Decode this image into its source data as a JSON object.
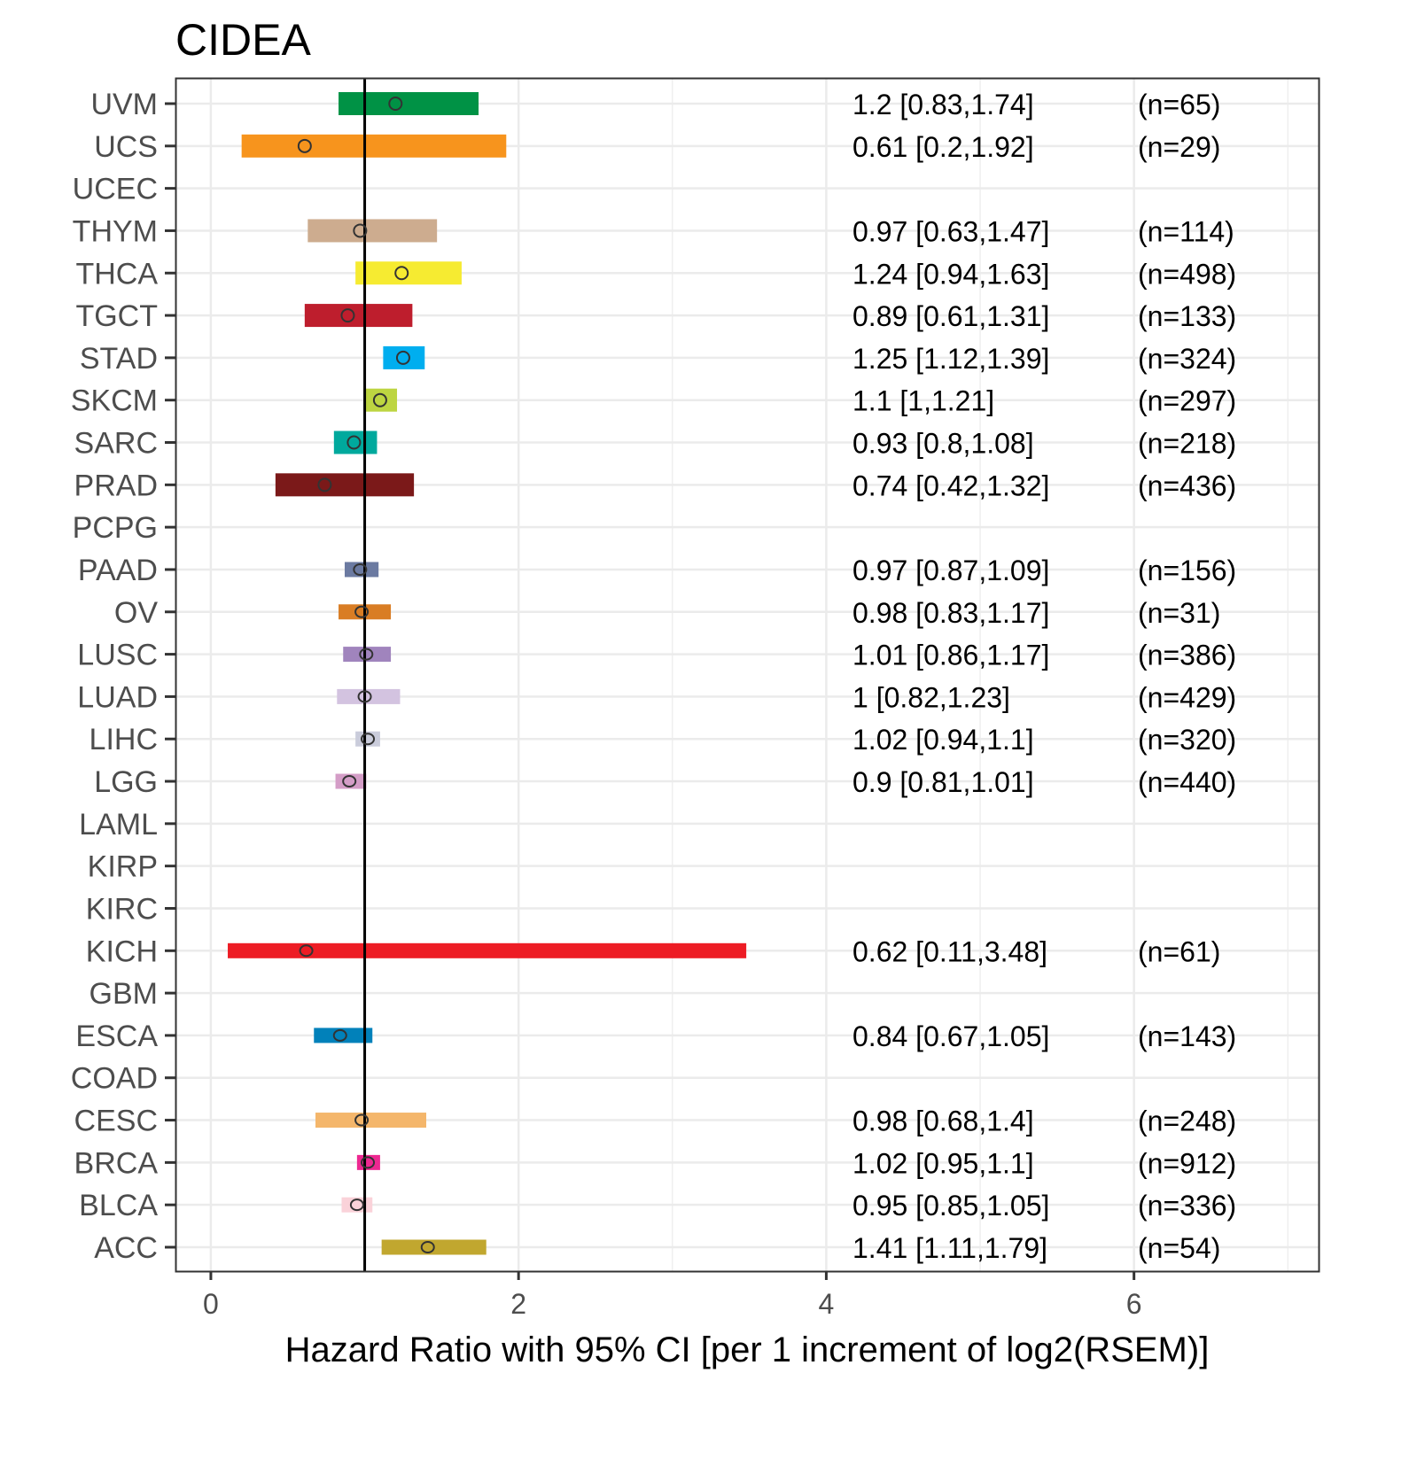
{
  "chart_data": {
    "type": "forest",
    "title": "CIDEA",
    "xlabel": "Hazard Ratio with 95% CI [per 1 increment of log2(RSEM)]",
    "xlim": [
      -0.23,
      7.2
    ],
    "xticks": [
      0,
      2,
      4,
      6
    ],
    "reference_line": 1,
    "grid": true,
    "rows": [
      {
        "label": "UVM",
        "hr": 1.2,
        "lo": 0.83,
        "hi": 1.74,
        "text": "1.2 [0.83,1.74]",
        "n": "(n=65)",
        "color": "#009245"
      },
      {
        "label": "UCS",
        "hr": 0.61,
        "lo": 0.2,
        "hi": 1.92,
        "text": "0.61 [0.2,1.92]",
        "n": "(n=29)",
        "color": "#F7941D"
      },
      {
        "label": "UCEC",
        "hr": null,
        "lo": null,
        "hi": null,
        "text": "",
        "n": "",
        "color": "#ffffff"
      },
      {
        "label": "THYM",
        "hr": 0.97,
        "lo": 0.63,
        "hi": 1.47,
        "text": "0.97 [0.63,1.47]",
        "n": "(n=114)",
        "color": "#CDAC8F"
      },
      {
        "label": "THCA",
        "hr": 1.24,
        "lo": 0.94,
        "hi": 1.63,
        "text": "1.24 [0.94,1.63]",
        "n": "(n=498)",
        "color": "#F6EB31"
      },
      {
        "label": "TGCT",
        "hr": 0.89,
        "lo": 0.61,
        "hi": 1.31,
        "text": "0.89 [0.61,1.31]",
        "n": "(n=133)",
        "color": "#BE1E2D"
      },
      {
        "label": "STAD",
        "hr": 1.25,
        "lo": 1.12,
        "hi": 1.39,
        "text": "1.25 [1.12,1.39]",
        "n": "(n=324)",
        "color": "#00AEEF"
      },
      {
        "label": "SKCM",
        "hr": 1.1,
        "lo": 1,
        "hi": 1.21,
        "text": "1.1 [1,1.21]",
        "n": "(n=297)",
        "color": "#BDD541"
      },
      {
        "label": "SARC",
        "hr": 0.93,
        "lo": 0.8,
        "hi": 1.08,
        "text": "0.93 [0.8,1.08]",
        "n": "(n=218)",
        "color": "#00A99D"
      },
      {
        "label": "PRAD",
        "hr": 0.74,
        "lo": 0.42,
        "hi": 1.32,
        "text": "0.74 [0.42,1.32]",
        "n": "(n=436)",
        "color": "#7B1919"
      },
      {
        "label": "PCPG",
        "hr": null,
        "lo": null,
        "hi": null,
        "text": "",
        "n": "",
        "color": "#ffffff"
      },
      {
        "label": "PAAD",
        "hr": 0.97,
        "lo": 0.87,
        "hi": 1.09,
        "text": "0.97 [0.87,1.09]",
        "n": "(n=156)",
        "color": "#6B7AA1"
      },
      {
        "label": "OV",
        "hr": 0.98,
        "lo": 0.83,
        "hi": 1.17,
        "text": "0.98 [0.83,1.17]",
        "n": "(n=31)",
        "color": "#D97D24"
      },
      {
        "label": "LUSC",
        "hr": 1.01,
        "lo": 0.86,
        "hi": 1.17,
        "text": "1.01 [0.86,1.17]",
        "n": "(n=386)",
        "color": "#A084BD"
      },
      {
        "label": "LUAD",
        "hr": 1,
        "lo": 0.82,
        "hi": 1.23,
        "text": "1 [0.82,1.23]",
        "n": "(n=429)",
        "color": "#D3C3E0"
      },
      {
        "label": "LIHC",
        "hr": 1.02,
        "lo": 0.94,
        "hi": 1.1,
        "text": "1.02 [0.94,1.1]",
        "n": "(n=320)",
        "color": "#CACCDB"
      },
      {
        "label": "LGG",
        "hr": 0.9,
        "lo": 0.81,
        "hi": 1.01,
        "text": "0.9 [0.81,1.01]",
        "n": "(n=440)",
        "color": "#D49DC7"
      },
      {
        "label": "LAML",
        "hr": null,
        "lo": null,
        "hi": null,
        "text": "",
        "n": "",
        "color": "#ffffff"
      },
      {
        "label": "KIRP",
        "hr": null,
        "lo": null,
        "hi": null,
        "text": "",
        "n": "",
        "color": "#ffffff"
      },
      {
        "label": "KIRC",
        "hr": null,
        "lo": null,
        "hi": null,
        "text": "",
        "n": "",
        "color": "#ffffff"
      },
      {
        "label": "KICH",
        "hr": 0.62,
        "lo": 0.11,
        "hi": 3.48,
        "text": "0.62 [0.11,3.48]",
        "n": "(n=61)",
        "color": "#ED1C24"
      },
      {
        "label": "GBM",
        "hr": null,
        "lo": null,
        "hi": null,
        "text": "",
        "n": "",
        "color": "#ffffff"
      },
      {
        "label": "ESCA",
        "hr": 0.84,
        "lo": 0.67,
        "hi": 1.05,
        "text": "0.84 [0.67,1.05]",
        "n": "(n=143)",
        "color": "#0181BA"
      },
      {
        "label": "COAD",
        "hr": null,
        "lo": null,
        "hi": null,
        "text": "",
        "n": "",
        "color": "#ffffff"
      },
      {
        "label": "CESC",
        "hr": 0.98,
        "lo": 0.68,
        "hi": 1.4,
        "text": "0.98 [0.68,1.4]",
        "n": "(n=248)",
        "color": "#F4B66B"
      },
      {
        "label": "BRCA",
        "hr": 1.02,
        "lo": 0.95,
        "hi": 1.1,
        "text": "1.02 [0.95,1.1]",
        "n": "(n=912)",
        "color": "#ED2891"
      },
      {
        "label": "BLCA",
        "hr": 0.95,
        "lo": 0.85,
        "hi": 1.05,
        "text": "0.95 [0.85,1.05]",
        "n": "(n=336)",
        "color": "#FAD2D9"
      },
      {
        "label": "ACC",
        "hr": 1.41,
        "lo": 1.11,
        "hi": 1.79,
        "text": "1.41 [1.11,1.79]",
        "n": "(n=54)",
        "color": "#C1A72F"
      }
    ]
  }
}
